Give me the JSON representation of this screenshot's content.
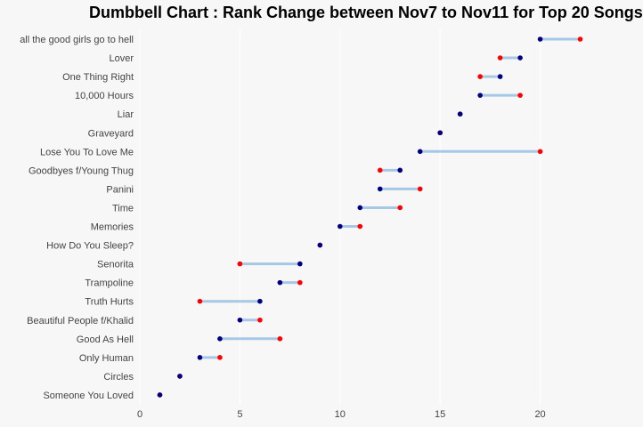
{
  "chart_data": {
    "type": "dumbbell",
    "title": "Dumbbell Chart : Rank Change between Nov7 to Nov11 for Top 20 Songs",
    "xlabel": "",
    "ylabel": "",
    "xlim": [
      0,
      23
    ],
    "xticks": [
      0,
      5,
      10,
      15,
      20
    ],
    "grid": true,
    "categories": [
      "all the good girls go to hell",
      "Lover",
      "One Thing Right",
      "10,000 Hours",
      "Liar",
      "Graveyard",
      "Lose You To Love Me",
      "Goodbyes f/Young Thug",
      "Panini",
      "Time",
      "Memories",
      "How Do You Sleep?",
      "Senorita",
      "Trampoline",
      "Truth Hurts",
      "Beautiful People f/Khalid",
      "Good As Hell",
      "Only Human",
      "Circles",
      "Someone You Loved"
    ],
    "series": [
      {
        "values": [
          20,
          19,
          18,
          17,
          16,
          15,
          14,
          13,
          12,
          11,
          10,
          9,
          8,
          7,
          6,
          5,
          4,
          3,
          2,
          1
        ]
      },
      {
        "values": [
          22,
          18,
          17,
          19,
          16,
          15,
          20,
          12,
          14,
          13,
          11,
          9,
          5,
          8,
          3,
          6,
          7,
          4,
          2,
          1
        ]
      }
    ],
    "colors": {
      "start": "#000080",
      "end": "#ff0000",
      "segment": "#a6c8e6",
      "grid": "#ffffff"
    }
  }
}
